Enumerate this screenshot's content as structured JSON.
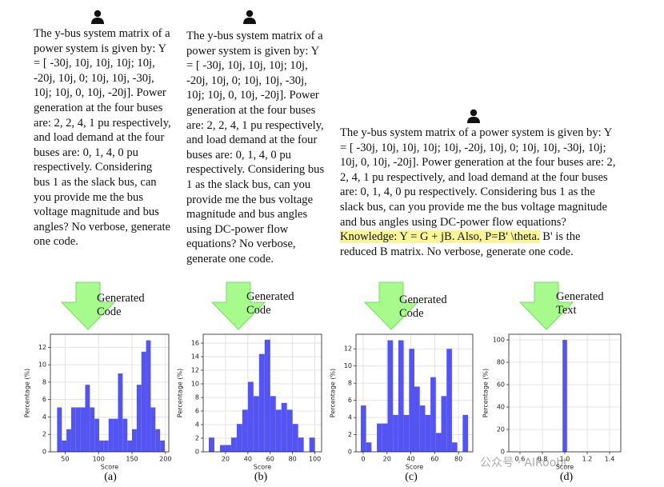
{
  "prompts": [
    {
      "text": "The y-bus system matrix of a power system is given by: Y = [ -30j, 10j, 10j, 10j; 10j, -20j, 10j, 0; 10j, 10j, -30j, 10j; 10j, 0, 10j, -20j]. Power generation at the four buses are: 2, 2, 4, 1 pu respectively, and load demand at the four buses are: 0, 1, 4, 0 pu respectively. Considering bus 1 as the slack bus, can you provide me the bus voltage magnitude and bus angles? No verbose, generate one code."
    },
    {
      "text": "The y-bus system matrix of a power system is given by: Y = [ -30j, 10j, 10j, 10j; 10j, -20j, 10j, 0; 10j, 10j, -30j, 10j; 10j, 0, 10j, -20j]. Power generation at the four buses are: 2, 2, 4, 1 pu respectively, and load demand at the four buses are: 0, 1, 4, 0 pu respectively. Considering bus 1 as the slack bus, can you provide me the bus voltage magnitude and bus angles using DC-power flow equations? No verbose, generate one code."
    },
    {
      "before": "The y-bus system matrix of a power system is given by: Y = [ -30j, 10j, 10j, 10j; 10j, -20j, 10j, 0; 10j, 10j, -30j, 10j; 10j, 0, 10j, -20j]. Power generation at the four buses are: 2, 2, 4, 1 pu respectively, and load demand at the four buses are: 0, 1, 4, 0 pu respectively. Considering bus 1 as the slack bus, can you provide me the bus voltage magnitude and bus angles using DC-power flow equations?",
      "highlight": "Knowledge: Y = G + jB. Also, P=B' \\theta.",
      "after": "B' is the reduced B matrix. No verbose, generate one code."
    }
  ],
  "arrow_labels": [
    "Generated Code",
    "Generated Code",
    "Generated Code",
    "Generated Text"
  ],
  "captions": [
    "(a)",
    "(b)",
    "(c)",
    "(d)"
  ],
  "watermark": "公众号 · AIRoobt",
  "chart_data": [
    {
      "type": "histogram",
      "xlabel": "Score",
      "ylabel": "Percentage (%)",
      "color": "#4b4bf2",
      "grid": true,
      "bins": [
        38,
        45,
        52,
        59,
        66,
        73,
        80,
        87,
        94,
        101,
        108,
        115,
        122,
        129,
        136,
        143,
        150,
        157,
        164,
        171,
        178,
        185,
        192,
        199
      ],
      "values": [
        5.1,
        1.3,
        2.6,
        5.1,
        5.1,
        5.1,
        7.7,
        5.1,
        3.8,
        1.3,
        1.3,
        3.8,
        3.8,
        9.0,
        3.8,
        1.3,
        2.6,
        7.7,
        11.5,
        12.8,
        5.1,
        2.6,
        1.3
      ],
      "xlim": [
        28,
        205
      ],
      "ylim": [
        0,
        13.5
      ],
      "xticks": [
        50,
        100,
        150,
        200
      ],
      "yticks": [
        0,
        2,
        4,
        6,
        8,
        10,
        12
      ]
    },
    {
      "type": "histogram",
      "xlabel": "Score",
      "ylabel": "Percentage (%)",
      "color": "#4b4bf2",
      "grid": true,
      "bins": [
        5,
        10,
        15,
        20,
        25,
        30,
        35,
        40,
        45,
        50,
        55,
        60,
        65,
        70,
        75,
        80,
        85,
        90,
        95,
        100
      ],
      "values": [
        2.1,
        0,
        1.0,
        1.0,
        2.1,
        4.1,
        6.2,
        10.3,
        8.2,
        14.4,
        16.5,
        8.2,
        6.2,
        7.2,
        6.2,
        4.1,
        2.1,
        0,
        2.1
      ],
      "xlim": [
        0,
        106
      ],
      "ylim": [
        0,
        17.3
      ],
      "xticks": [
        20,
        40,
        60,
        80,
        100
      ],
      "yticks": [
        0,
        2,
        4,
        6,
        8,
        10,
        12,
        14,
        16
      ]
    },
    {
      "type": "histogram",
      "xlabel": "Score",
      "ylabel": "Percentage (%)",
      "color": "#4b4bf2",
      "grid": true,
      "bins": [
        -2,
        2.5,
        7,
        11.5,
        16,
        20.5,
        25,
        29.5,
        34,
        38.5,
        43,
        47.5,
        52,
        56.5,
        61,
        65.5,
        70,
        74.5,
        79,
        83.5,
        88
      ],
      "values": [
        5.4,
        1.1,
        0,
        3.3,
        3.3,
        13.0,
        4.3,
        13.0,
        4.3,
        12.0,
        7.6,
        5.4,
        4.3,
        8.7,
        2.2,
        6.5,
        12.0,
        1.1,
        0,
        4.3
      ],
      "xlim": [
        -6,
        92
      ],
      "ylim": [
        0,
        13.7
      ],
      "xticks": [
        0,
        20,
        40,
        60,
        80
      ],
      "yticks": [
        0,
        2,
        4,
        6,
        8,
        10,
        12
      ]
    },
    {
      "type": "histogram",
      "xlabel": "Score",
      "ylabel": "Percentage (%)",
      "color": "#4b4bf2",
      "grid": true,
      "bins": [
        0.98,
        1.02
      ],
      "values": [
        100
      ],
      "xlim": [
        0.5,
        1.5
      ],
      "ylim": [
        0,
        105
      ],
      "xticks": [
        0.6,
        0.8,
        {
          "value": 1,
          "label": "1.0"
        },
        1.2,
        1.4
      ],
      "yticks": [
        0,
        20,
        40,
        60,
        80,
        100
      ]
    }
  ]
}
